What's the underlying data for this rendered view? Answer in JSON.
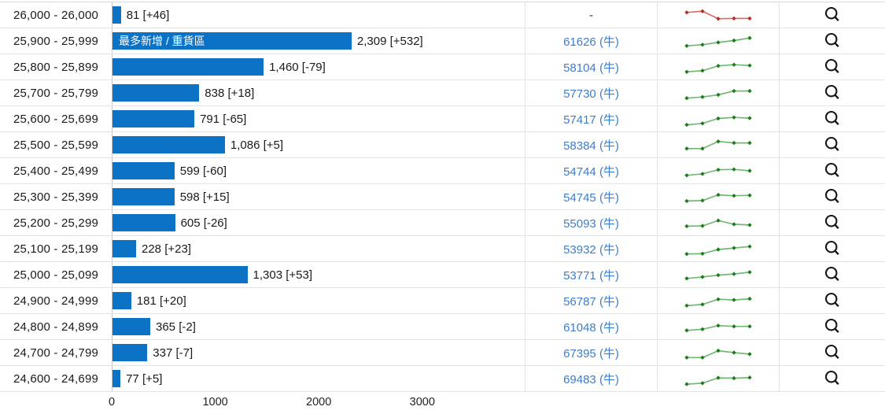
{
  "colors": {
    "bar_blue": "#0b72c6",
    "link_blue": "#3e7dc8",
    "spark_up_line": "#74b874",
    "spark_up_marker": "#1e7c1e",
    "spark_down_line": "#d7706b",
    "spark_down_marker": "#b72f28",
    "search_icon": "#161616",
    "row_border": "#e3e3e3",
    "axis_line": "#c6c6c6"
  },
  "chart_data": {
    "type": "bar",
    "orientation": "horizontal",
    "title": "",
    "xlabel": "",
    "ylabel": "",
    "xlim": [
      0,
      4000
    ],
    "x_ticks": [
      0,
      1000,
      2000,
      3000
    ],
    "x_tick_labels": [
      "0",
      "1000",
      "2000",
      "3000"
    ],
    "grid": false,
    "legend": "none",
    "categories": [
      "26,000 - 26,000",
      "25,900 - 25,999",
      "25,800 - 25,899",
      "25,700 - 25,799",
      "25,600 - 25,699",
      "25,500 - 25,599",
      "25,400 - 25,499",
      "25,300 - 25,399",
      "25,200 - 25,299",
      "25,100 - 25,199",
      "25,000 - 25,099",
      "24,900 - 24,999",
      "24,800 - 24,899",
      "24,700 - 24,799",
      "24,600 - 24,699"
    ],
    "values": [
      81,
      2309,
      1460,
      838,
      791,
      1086,
      599,
      598,
      605,
      228,
      1303,
      181,
      365,
      337,
      77
    ],
    "changes": [
      46,
      532,
      -79,
      18,
      -65,
      5,
      -60,
      15,
      -26,
      23,
      53,
      20,
      -2,
      -7,
      5
    ],
    "bar_labels": [
      "81 [+46]",
      "2,309 [+532]",
      "1,460 [-79]",
      "838 [+18]",
      "791 [-65]",
      "1,086 [+5]",
      "599 [-60]",
      "598 [+15]",
      "605 [-26]",
      "228 [+23]",
      "1,303 [+53]",
      "181 [+20]",
      "365 [-2]",
      "337 [-7]",
      "77 [+5]"
    ],
    "annotation": {
      "row_index": 1,
      "text": "最多新增 / 重貨區"
    },
    "outstanding": [
      "-",
      "61626 (牛)",
      "58104 (牛)",
      "57730 (牛)",
      "57417 (牛)",
      "58384 (牛)",
      "54744 (牛)",
      "54745 (牛)",
      "55093 (牛)",
      "53932 (牛)",
      "53771 (牛)",
      "56787 (牛)",
      "61048 (牛)",
      "67395 (牛)",
      "69483 (牛)"
    ],
    "sparklines": [
      {
        "trend": "down",
        "points": [
          0.72,
          0.8,
          0.3,
          0.32,
          0.32
        ]
      },
      {
        "trend": "up",
        "points": [
          0.22,
          0.3,
          0.45,
          0.58,
          0.75
        ]
      },
      {
        "trend": "up",
        "points": [
          0.22,
          0.3,
          0.62,
          0.7,
          0.65
        ]
      },
      {
        "trend": "up",
        "points": [
          0.2,
          0.28,
          0.42,
          0.68,
          0.68
        ]
      },
      {
        "trend": "up",
        "points": [
          0.15,
          0.25,
          0.58,
          0.65,
          0.6
        ]
      },
      {
        "trend": "up",
        "points": [
          0.3,
          0.3,
          0.78,
          0.68,
          0.68
        ]
      },
      {
        "trend": "up",
        "points": [
          0.25,
          0.35,
          0.62,
          0.65,
          0.55
        ]
      },
      {
        "trend": "up",
        "points": [
          0.27,
          0.3,
          0.68,
          0.62,
          0.65
        ]
      },
      {
        "trend": "up",
        "points": [
          0.32,
          0.34,
          0.7,
          0.45,
          0.4
        ]
      },
      {
        "trend": "up",
        "points": [
          0.2,
          0.22,
          0.5,
          0.6,
          0.7
        ]
      },
      {
        "trend": "up",
        "points": [
          0.3,
          0.4,
          0.52,
          0.6,
          0.72
        ]
      },
      {
        "trend": "up",
        "points": [
          0.22,
          0.3,
          0.65,
          0.6,
          0.68
        ]
      },
      {
        "trend": "up",
        "points": [
          0.3,
          0.38,
          0.62,
          0.57,
          0.57
        ]
      },
      {
        "trend": "up",
        "points": [
          0.22,
          0.22,
          0.68,
          0.55,
          0.45
        ]
      },
      {
        "trend": "up",
        "points": [
          0.18,
          0.25,
          0.6,
          0.58,
          0.62
        ]
      }
    ],
    "row_icon": "search-icon"
  }
}
